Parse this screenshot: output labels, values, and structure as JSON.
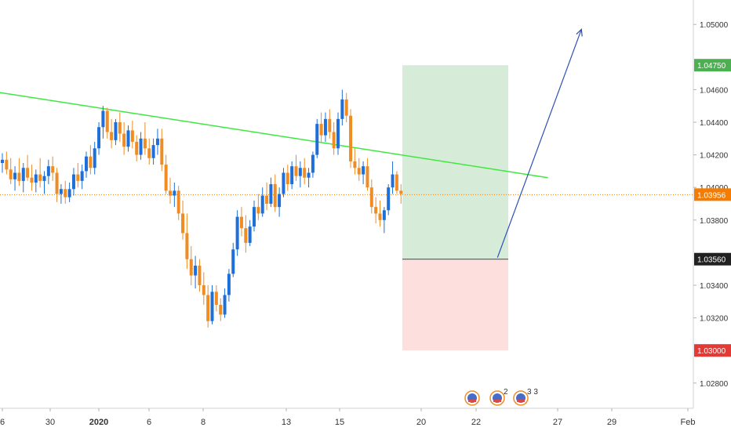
{
  "chart_data": {
    "type": "candlestick",
    "x_tick_labels": [
      "6",
      "30",
      "2020",
      "6",
      "8",
      "13",
      "15",
      "20",
      "22",
      "27",
      "29",
      "Feb"
    ],
    "y_tick_labels": [
      "1.05000",
      "1.04600",
      "1.04400",
      "1.04200",
      "1.04000",
      "1.03800",
      "1.03400",
      "1.03200",
      "1.02800"
    ],
    "ylim": [
      1.0265,
      1.0515
    ],
    "grid": false,
    "last_price": 1.03956,
    "price_badges": [
      {
        "label": "1.04750",
        "value": 1.0475,
        "color": "#4caf50"
      },
      {
        "label": "1.03956",
        "value": 1.03956,
        "color": "#f57c00"
      },
      {
        "label": "1.03560",
        "value": 1.0356,
        "color": "#212121"
      },
      {
        "label": "1.03000",
        "value": 1.03,
        "color": "#e53935"
      }
    ],
    "position": {
      "entry": 1.0356,
      "take_profit": 1.0475,
      "stop_loss": 1.03
    },
    "trendline": {
      "start": {
        "bar": -5,
        "price": 1.046
      },
      "end": {
        "bar": 130,
        "price": 1.0406
      }
    },
    "projection_arrow": {
      "start": {
        "bar": 118,
        "price": 1.0357
      },
      "end": {
        "bar": 138,
        "price": 1.0497
      }
    },
    "event_markers": [
      {
        "count": ""
      },
      {
        "count": "2"
      },
      {
        "count": "3 3"
      }
    ],
    "candles_ohlc": [
      [
        1.0415,
        1.0421,
        1.0409,
        1.0417
      ],
      [
        1.0417,
        1.0422,
        1.0408,
        1.0411
      ],
      [
        1.0411,
        1.0418,
        1.0402,
        1.0405
      ],
      [
        1.0405,
        1.0413,
        1.0398,
        1.0409
      ],
      [
        1.0409,
        1.0418,
        1.0401,
        1.0404
      ],
      [
        1.0404,
        1.0415,
        1.0397,
        1.0412
      ],
      [
        1.0412,
        1.042,
        1.0404,
        1.0406
      ],
      [
        1.0406,
        1.0414,
        1.0398,
        1.0403
      ],
      [
        1.0403,
        1.0411,
        1.0397,
        1.0408
      ],
      [
        1.0408,
        1.0418,
        1.04,
        1.0404
      ],
      [
        1.0404,
        1.041,
        1.0396,
        1.0407
      ],
      [
        1.0407,
        1.0417,
        1.0402,
        1.0413
      ],
      [
        1.0413,
        1.0419,
        1.0404,
        1.0409
      ],
      [
        1.0409,
        1.0412,
        1.0391,
        1.0396
      ],
      [
        1.0396,
        1.0402,
        1.039,
        1.0399
      ],
      [
        1.0399,
        1.0404,
        1.039,
        1.0394
      ],
      [
        1.0394,
        1.0403,
        1.0391,
        1.0399
      ],
      [
        1.0399,
        1.0412,
        1.0395,
        1.0408
      ],
      [
        1.0408,
        1.0415,
        1.04,
        1.0404
      ],
      [
        1.0404,
        1.0414,
        1.0399,
        1.041
      ],
      [
        1.041,
        1.0422,
        1.0406,
        1.0419
      ],
      [
        1.0419,
        1.0426,
        1.0408,
        1.0412
      ],
      [
        1.0412,
        1.0428,
        1.0408,
        1.0424
      ],
      [
        1.0424,
        1.044,
        1.042,
        1.0437
      ],
      [
        1.0437,
        1.045,
        1.043,
        1.0447
      ],
      [
        1.0447,
        1.0449,
        1.043,
        1.0434
      ],
      [
        1.0434,
        1.0442,
        1.0424,
        1.0429
      ],
      [
        1.0429,
        1.0442,
        1.0426,
        1.044
      ],
      [
        1.044,
        1.0446,
        1.0428,
        1.0433
      ],
      [
        1.0433,
        1.044,
        1.042,
        1.0425
      ],
      [
        1.0425,
        1.0438,
        1.0422,
        1.0435
      ],
      [
        1.0435,
        1.0441,
        1.0424,
        1.0428
      ],
      [
        1.0428,
        1.0432,
        1.0416,
        1.042
      ],
      [
        1.042,
        1.0434,
        1.0417,
        1.043
      ],
      [
        1.043,
        1.044,
        1.042,
        1.0424
      ],
      [
        1.0424,
        1.043,
        1.0414,
        1.0418
      ],
      [
        1.0418,
        1.043,
        1.0414,
        1.0426
      ],
      [
        1.0426,
        1.0436,
        1.042,
        1.043
      ],
      [
        1.043,
        1.0436,
        1.041,
        1.0414
      ],
      [
        1.0414,
        1.042,
        1.0396,
        1.0398
      ],
      [
        1.0398,
        1.0406,
        1.039,
        1.0395
      ],
      [
        1.0395,
        1.0403,
        1.0388,
        1.0398
      ],
      [
        1.0398,
        1.0401,
        1.038,
        1.0384
      ],
      [
        1.0384,
        1.0392,
        1.0368,
        1.0372
      ],
      [
        1.0372,
        1.0384,
        1.035,
        1.0356
      ],
      [
        1.0356,
        1.0364,
        1.034,
        1.0346
      ],
      [
        1.0346,
        1.0358,
        1.0338,
        1.0352
      ],
      [
        1.0352,
        1.0356,
        1.0336,
        1.034
      ],
      [
        1.034,
        1.0348,
        1.0328,
        1.0334
      ],
      [
        1.0334,
        1.034,
        1.0314,
        1.0318
      ],
      [
        1.0318,
        1.034,
        1.0316,
        1.0336
      ],
      [
        1.0336,
        1.034,
        1.0324,
        1.0328
      ],
      [
        1.0328,
        1.0332,
        1.0318,
        1.0322
      ],
      [
        1.0322,
        1.0338,
        1.032,
        1.0334
      ],
      [
        1.0334,
        1.035,
        1.033,
        1.0347
      ],
      [
        1.0347,
        1.0366,
        1.0345,
        1.0362
      ],
      [
        1.0362,
        1.0386,
        1.0358,
        1.0382
      ],
      [
        1.0382,
        1.0388,
        1.037,
        1.0375
      ],
      [
        1.0375,
        1.0383,
        1.036,
        1.0366
      ],
      [
        1.0366,
        1.038,
        1.0364,
        1.0376
      ],
      [
        1.0376,
        1.0392,
        1.0373,
        1.0388
      ],
      [
        1.0388,
        1.0396,
        1.038,
        1.0384
      ],
      [
        1.0384,
        1.04,
        1.0382,
        1.0395
      ],
      [
        1.0395,
        1.0403,
        1.0386,
        1.039
      ],
      [
        1.039,
        1.0406,
        1.0388,
        1.0402
      ],
      [
        1.0402,
        1.0408,
        1.0385,
        1.0388
      ],
      [
        1.0388,
        1.04,
        1.0382,
        1.0396
      ],
      [
        1.0396,
        1.0412,
        1.0394,
        1.0409
      ],
      [
        1.0409,
        1.0414,
        1.0398,
        1.0402
      ],
      [
        1.0402,
        1.0416,
        1.0399,
        1.0413
      ],
      [
        1.0413,
        1.042,
        1.0404,
        1.0407
      ],
      [
        1.0407,
        1.0416,
        1.04,
        1.0412
      ],
      [
        1.0412,
        1.0418,
        1.0402,
        1.0406
      ],
      [
        1.0406,
        1.0412,
        1.04,
        1.0409
      ],
      [
        1.0409,
        1.0422,
        1.0406,
        1.042
      ],
      [
        1.042,
        1.0442,
        1.0418,
        1.0439
      ],
      [
        1.0439,
        1.0446,
        1.0428,
        1.0432
      ],
      [
        1.0432,
        1.0446,
        1.0428,
        1.0442
      ],
      [
        1.0442,
        1.0448,
        1.043,
        1.0434
      ],
      [
        1.0434,
        1.044,
        1.042,
        1.0424
      ],
      [
        1.0424,
        1.0446,
        1.042,
        1.0442
      ],
      [
        1.0442,
        1.046,
        1.0438,
        1.0454
      ],
      [
        1.0454,
        1.0458,
        1.044,
        1.0444
      ],
      [
        1.0444,
        1.0448,
        1.0412,
        1.0416
      ],
      [
        1.0416,
        1.0424,
        1.0408,
        1.0412
      ],
      [
        1.0412,
        1.0418,
        1.0404,
        1.0408
      ],
      [
        1.0408,
        1.0416,
        1.0402,
        1.0413
      ],
      [
        1.0413,
        1.0418,
        1.0398,
        1.04
      ],
      [
        1.04,
        1.0405,
        1.0384,
        1.0388
      ],
      [
        1.0388,
        1.0394,
        1.0378,
        1.0384
      ],
      [
        1.0384,
        1.0392,
        1.0376,
        1.038
      ],
      [
        1.038,
        1.0388,
        1.0372,
        1.0386
      ],
      [
        1.0386,
        1.0402,
        1.0383,
        1.04
      ],
      [
        1.04,
        1.0416,
        1.0396,
        1.0408
      ],
      [
        1.0408,
        1.041,
        1.0396,
        1.0398
      ],
      [
        1.0398,
        1.0402,
        1.039,
        1.0396
      ]
    ]
  }
}
